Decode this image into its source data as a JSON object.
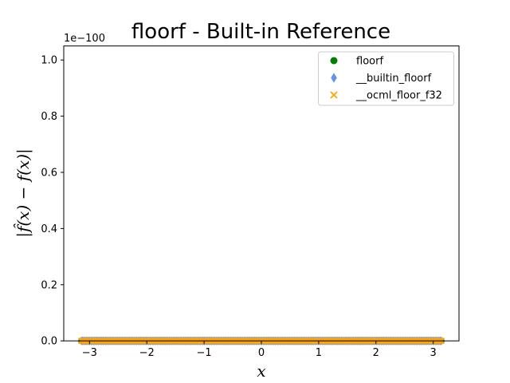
{
  "chart_data": {
    "type": "scatter",
    "title": "floorf - Built-in Reference",
    "xlabel": "x",
    "ylabel": "|f̂(x) − f(x)|",
    "y_offset_text": "1e−100",
    "xlim": [
      -3.45,
      3.45
    ],
    "ylim": [
      0,
      1.05
    ],
    "xticks": [
      -3,
      -2,
      -1,
      0,
      1,
      2,
      3
    ],
    "xtick_labels": [
      "−3",
      "−2",
      "−1",
      "0",
      "1",
      "2",
      "3"
    ],
    "yticks": [
      0.0,
      0.2,
      0.4,
      0.6,
      0.8,
      1.0
    ],
    "ytick_labels": [
      "0.0",
      "0.2",
      "0.4",
      "0.6",
      "0.8",
      "1.0"
    ],
    "grid": false,
    "legend_position": "upper-right",
    "x_range": [
      -3.14159,
      3.14159
    ],
    "series": [
      {
        "name": "floorf",
        "marker": "circle",
        "color": "#007f00",
        "value": 0
      },
      {
        "name": "__builtin_floorf",
        "marker": "diamond",
        "color": "#6495ed",
        "value": 0
      },
      {
        "name": "__ocml_floor_f32",
        "marker": "x",
        "color": "#ffa500",
        "value": 0
      }
    ]
  }
}
